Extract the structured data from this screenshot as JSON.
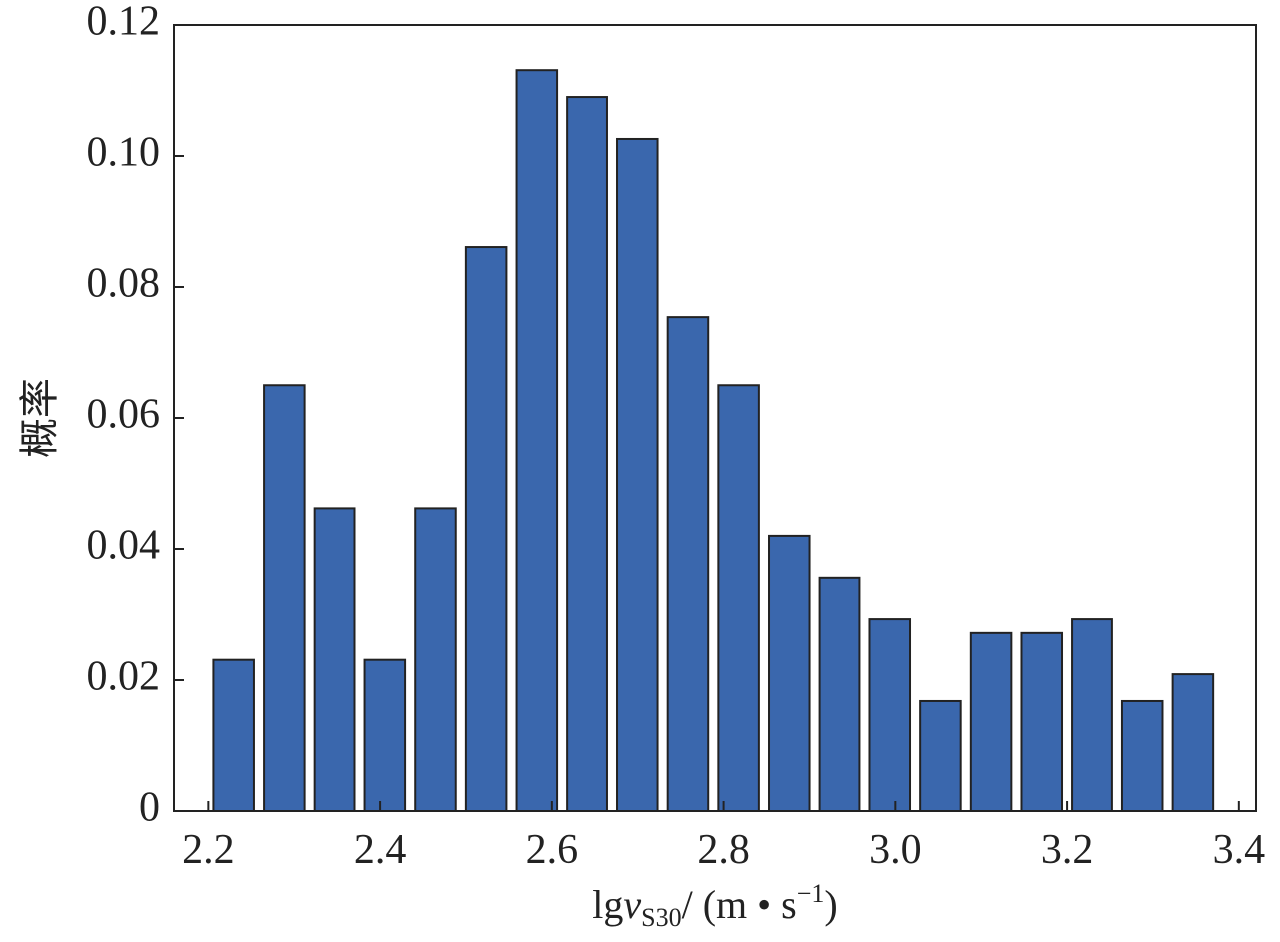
{
  "chart_data": {
    "type": "histogram",
    "x_label": {
      "prefix": "lg",
      "var": "v",
      "sub": "S30",
      "unit": "/ (m • s",
      "sup": "−1",
      "end": ")"
    },
    "y_label": "概率",
    "bins": [
      2.2,
      2.259,
      2.318,
      2.376,
      2.435,
      2.494,
      2.553,
      2.612,
      2.67,
      2.729,
      2.788,
      2.847,
      2.906,
      2.964,
      3.023,
      3.082,
      3.141,
      3.2,
      3.258,
      3.317,
      3.376
    ],
    "values": [
      0.0231,
      0.065,
      0.0462,
      0.0231,
      0.0462,
      0.0861,
      0.1131,
      0.109,
      0.1026,
      0.0754,
      0.065,
      0.042,
      0.0356,
      0.0293,
      0.0168,
      0.0272,
      0.0272,
      0.0293,
      0.0168,
      0.0209
    ],
    "color": "#3a67ad",
    "xlim": [
      2.16,
      3.42
    ],
    "xticks": [
      2.2,
      2.4,
      2.6,
      2.8,
      {
        "value": 3.0,
        "label": "3.0"
      },
      3.2,
      3.4
    ],
    "ylim": [
      0,
      0.12
    ],
    "yticks": [
      0,
      0.02,
      0.04,
      0.06,
      0.08,
      {
        "value": 0.1,
        "label": "0.10"
      },
      0.12
    ]
  }
}
